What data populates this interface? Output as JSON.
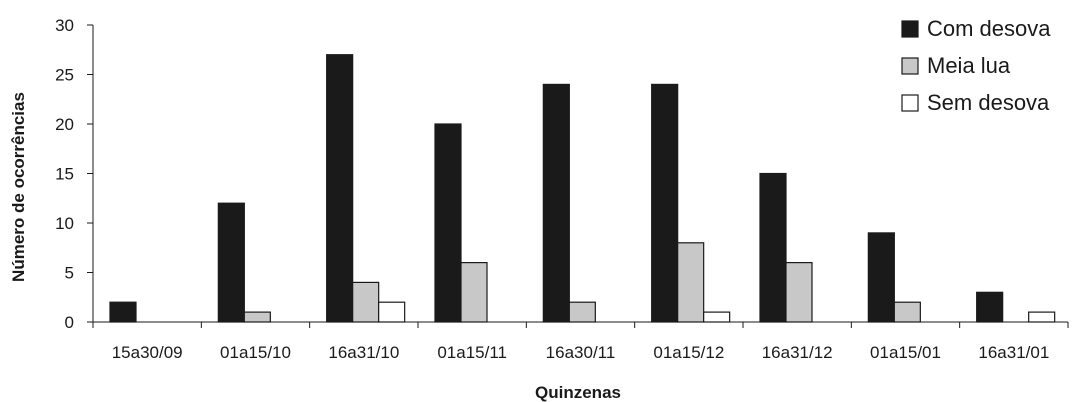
{
  "chart_data": {
    "type": "bar",
    "xlabel": "Quinzenas",
    "ylabel": "Número de ocorrências",
    "categories": [
      "15a30/09",
      "01a15/10",
      "16a31/10",
      "01a15/11",
      "16a30/11",
      "01a15/12",
      "16a31/12",
      "01a15/01",
      "16a31/01"
    ],
    "series": [
      {
        "name": "Com desova",
        "color": "#1a1a1a",
        "values": [
          2,
          12,
          27,
          20,
          24,
          24,
          15,
          9,
          3
        ]
      },
      {
        "name": "Meia lua",
        "color": "#c8c8c8",
        "values": [
          0,
          1,
          4,
          6,
          2,
          8,
          6,
          2,
          0
        ]
      },
      {
        "name": "Sem desova",
        "color": "#ffffff",
        "values": [
          0,
          0,
          2,
          0,
          0,
          1,
          0,
          0,
          1
        ]
      }
    ],
    "ylim": [
      0,
      30
    ],
    "yticks": [
      0,
      5,
      10,
      15,
      20,
      25,
      30
    ],
    "legend": "top-right",
    "grid": false
  }
}
